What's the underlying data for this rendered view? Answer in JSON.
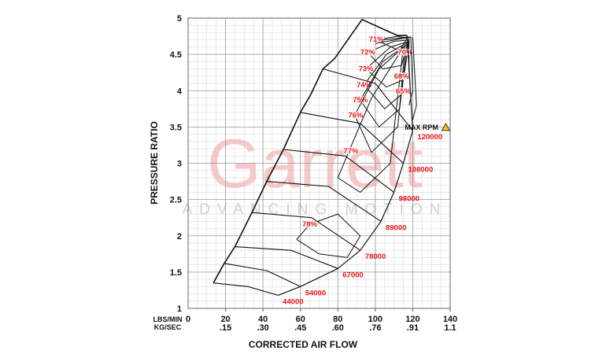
{
  "chart_data": {
    "type": "compressor-map",
    "x_label": "CORRECTED AIR FLOW",
    "y_label": "PRESSURE RATIO",
    "x_unit_label": "LBS/MIN",
    "x2_unit_label": "KG/SEC",
    "watermark": "Garrett",
    "watermark_sub": "ADVANCING MOTION",
    "max_rpm_label": "MAX RPM",
    "xlim": [
      0,
      140
    ],
    "ylim": [
      1,
      5
    ],
    "xticks": [
      0,
      20,
      40,
      60,
      80,
      100,
      120,
      140
    ],
    "x2ticks": [
      {
        "value": 20,
        "label": ".15"
      },
      {
        "value": 40,
        "label": ".30"
      },
      {
        "value": 60,
        "label": ".45"
      },
      {
        "value": 80,
        "label": ".60"
      },
      {
        "value": 100,
        "label": ".76"
      },
      {
        "value": 120,
        "label": ".91"
      },
      {
        "value": 140,
        "label": "1.1"
      }
    ],
    "yticks": [
      1,
      1.5,
      2,
      2.5,
      3,
      3.5,
      4,
      4.5,
      5
    ],
    "grid": true,
    "minor_grid": {
      "x": 5,
      "y": 0.1
    },
    "line_color": "#111111",
    "label_color": "#e8141b",
    "surge_line": {
      "x": [
        13.5,
        19.3,
        25,
        34.1,
        42,
        50.9,
        60,
        65.6,
        72,
        78.2,
        92.9,
        111.8,
        117
      ],
      "values": [
        1.35,
        1.62,
        1.85,
        2.32,
        2.75,
        3.19,
        3.7,
        3.95,
        4.3,
        4.44,
        4.98,
        4.76,
        4.76
      ]
    },
    "choke_line": {
      "x": [
        117,
        120,
        115,
        110,
        103,
        92,
        80,
        60,
        48
      ],
      "values": [
        4.76,
        3.45,
        3.0,
        2.6,
        2.2,
        1.8,
        1.55,
        1.3,
        1.18
      ]
    },
    "series": [
      {
        "name": "44000",
        "x": [
          13.5,
          32,
          48
        ],
        "values": [
          1.35,
          1.3,
          1.18
        ]
      },
      {
        "name": "54000",
        "x": [
          19.3,
          42,
          60
        ],
        "values": [
          1.62,
          1.52,
          1.3
        ]
      },
      {
        "name": "67000",
        "x": [
          25,
          55,
          80
        ],
        "values": [
          1.85,
          1.8,
          1.55
        ]
      },
      {
        "name": "78000",
        "x": [
          34.1,
          66,
          92
        ],
        "values": [
          2.32,
          2.25,
          1.8
        ]
      },
      {
        "name": "89000",
        "x": [
          42,
          75,
          103
        ],
        "values": [
          2.75,
          2.68,
          2.2
        ]
      },
      {
        "name": "98000",
        "x": [
          50.9,
          84,
          110
        ],
        "values": [
          3.19,
          3.1,
          2.6
        ]
      },
      {
        "name": "108000",
        "x": [
          60,
          92,
          115
        ],
        "values": [
          3.7,
          3.55,
          3.0
        ]
      },
      {
        "name": "120000",
        "x": [
          72,
          100,
          120
        ],
        "values": [
          4.3,
          4.1,
          3.45
        ]
      }
    ],
    "efficiency": [
      {
        "name": "71%",
        "label_at": [
          100.5,
          4.71
        ],
        "x": [
          100,
          112,
          117,
          113,
          100
        ],
        "values": [
          4.7,
          4.75,
          4.72,
          4.55,
          4.7
        ]
      },
      {
        "name": "72%",
        "label_at": [
          96,
          4.53
        ],
        "x": [
          96,
          110,
          118,
          114,
          104,
          96
        ],
        "values": [
          4.53,
          4.68,
          4.7,
          4.35,
          4.3,
          4.53
        ]
      },
      {
        "name": "73%",
        "label_at": [
          95,
          4.3
        ],
        "x": [
          95,
          108,
          118,
          115,
          106,
          95
        ],
        "values": [
          4.3,
          4.6,
          4.68,
          4.15,
          4.05,
          4.3
        ]
      },
      {
        "name": "74%",
        "label_at": [
          94,
          4.08
        ],
        "x": [
          94,
          106,
          117,
          114,
          105,
          94
        ],
        "values": [
          4.08,
          4.5,
          4.66,
          3.95,
          3.75,
          4.08
        ]
      },
      {
        "name": "75%",
        "label_at": [
          92,
          3.87
        ],
        "x": [
          92,
          104,
          117,
          113,
          102,
          92
        ],
        "values": [
          3.87,
          4.4,
          4.64,
          3.75,
          3.5,
          3.87
        ]
      },
      {
        "name": "76%",
        "label_at": [
          89.5,
          3.66
        ],
        "x": [
          89,
          102,
          116,
          112,
          98,
          89
        ],
        "values": [
          3.66,
          4.3,
          4.62,
          3.5,
          3.15,
          3.66
        ]
      },
      {
        "name": "77%",
        "label_at": [
          87,
          3.17
        ],
        "x": [
          86,
          98,
          115,
          108,
          92,
          80,
          86
        ],
        "values": [
          3.17,
          3.9,
          4.6,
          3.0,
          2.6,
          2.8,
          3.17
        ]
      },
      {
        "name": "78%",
        "label_at": [
          65,
          2.16
        ],
        "x": [
          65,
          80,
          92,
          85,
          70,
          58,
          65
        ],
        "values": [
          2.16,
          2.3,
          2.0,
          1.7,
          1.75,
          1.95,
          2.16
        ]
      },
      {
        "name": "70%",
        "label_at": [
          116,
          4.53
        ],
        "x": [
          104,
          118,
          118
        ],
        "values": [
          4.7,
          4.74,
          4.2
        ]
      },
      {
        "name": "68%",
        "label_at": [
          114,
          4.2
        ],
        "x": [
          100,
          119,
          120,
          118
        ],
        "values": [
          4.65,
          4.74,
          4.0,
          3.8
        ]
      },
      {
        "name": "65%",
        "label_at": [
          115,
          3.99
        ],
        "x": [
          120,
          122,
          120
        ],
        "values": [
          4.74,
          3.8,
          3.6
        ]
      }
    ]
  }
}
